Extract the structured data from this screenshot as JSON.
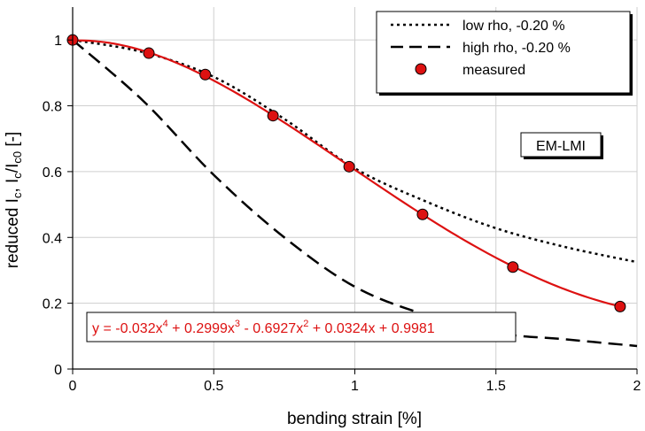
{
  "chart_data": {
    "type": "line",
    "xlabel": "bending strain [%]",
    "ylabel": {
      "pre": "reduced I",
      "sub1": "c",
      "mid": ", I",
      "sub2": "c",
      "mid2": "/I",
      "sub3": "c0",
      "post": " [-]"
    },
    "xlim": [
      0,
      2
    ],
    "ylim": [
      0,
      1.1
    ],
    "x_ticks": [
      0,
      0.5,
      1,
      1.5,
      2
    ],
    "x_tick_labels": [
      "0",
      "0.5",
      "1",
      "1.5",
      "2"
    ],
    "y_ticks": [
      0,
      0.2,
      0.4,
      0.6,
      0.8,
      1
    ],
    "y_tick_labels": [
      "0",
      "0.2",
      "0.4",
      "0.6",
      "0.8",
      "1"
    ],
    "grid": true,
    "legend_position": "top-right",
    "legend": [
      {
        "label": "low rho, -0.20 %",
        "style": "dotted",
        "color": "#000000"
      },
      {
        "label": "high rho, -0.20 %",
        "style": "dashed",
        "color": "#000000"
      },
      {
        "label": "measured",
        "style": "marker",
        "color": "#dd1111"
      }
    ],
    "annotation_box": "EM-LMI",
    "equation": {
      "parts": [
        "y = -0.032x",
        "4",
        " + 0.2999x",
        "3",
        " - 0.6927x",
        "2",
        " + 0.0324x + 0.9981"
      ],
      "coefficients": [
        -0.032,
        0.2999,
        -0.6927,
        0.0324,
        0.9981
      ],
      "color": "#dd1111"
    },
    "series": [
      {
        "name": "low rho, -0.20 %",
        "style": "dotted",
        "color": "#000000",
        "x": [
          0,
          0.25,
          0.5,
          0.75,
          1.0,
          1.25,
          1.5,
          1.75,
          2.0
        ],
        "y": [
          1.0,
          0.963,
          0.888,
          0.76,
          0.61,
          0.51,
          0.428,
          0.37,
          0.325
        ]
      },
      {
        "name": "high rho, -0.20 %",
        "style": "dashed",
        "color": "#000000",
        "x": [
          0,
          0.25,
          0.5,
          0.75,
          1.0,
          1.25,
          1.5,
          1.75,
          2.0
        ],
        "y": [
          1.0,
          0.815,
          0.59,
          0.4,
          0.25,
          0.165,
          0.11,
          0.09,
          0.07
        ]
      },
      {
        "name": "measured",
        "style": "marker",
        "color": "#dd1111",
        "x": [
          0,
          0.27,
          0.47,
          0.71,
          0.98,
          1.24,
          1.56,
          1.94
        ],
        "y": [
          1.0,
          0.96,
          0.895,
          0.77,
          0.615,
          0.47,
          0.31,
          0.19
        ]
      }
    ]
  }
}
